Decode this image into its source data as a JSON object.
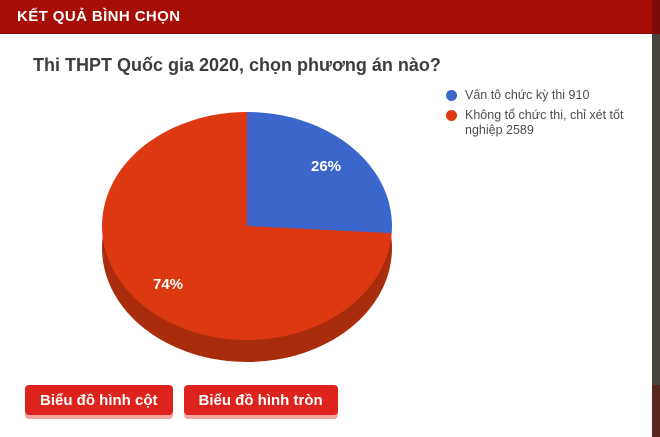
{
  "header": {
    "title": "KẾT QUẢ BÌNH CHỌN"
  },
  "poll": {
    "question": "Thi THPT Quốc gia 2020, chọn phương án nào?"
  },
  "chart_data": {
    "type": "pie",
    "title": "Thi THPT Quốc gia 2020, chọn phương án nào?",
    "effect_3d": true,
    "legend_position": "right",
    "depth_color": "#a92c0c",
    "slices": [
      {
        "legend_label": "Vân tô chức kỳ thi 910",
        "value": 910,
        "percent": 26,
        "percent_label": "26%",
        "color": "#3b66cb"
      },
      {
        "legend_label": "Không tổ chức thi, chỉ xét tốt nghiệp 2589",
        "value": 2589,
        "percent": 74,
        "percent_label": "74%",
        "color": "#dc3912"
      }
    ]
  },
  "buttons": {
    "bar_chart": "Biểu đồ hình cột",
    "pie_chart": "Biểu đồ hình tròn"
  },
  "colors": {
    "header_bg": "#a60d05",
    "button_bg": "#de221c",
    "pie_blue": "#3b66cb",
    "pie_red": "#dc3912",
    "pie_depth": "#a92c0c"
  }
}
